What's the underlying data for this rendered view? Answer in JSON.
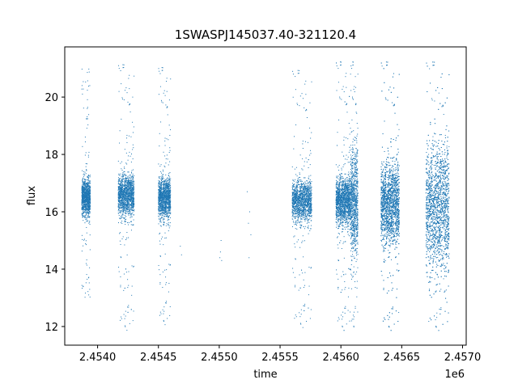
{
  "chart_data": {
    "type": "scatter",
    "title": "1SWASPJ145037.40-321120.4",
    "xlabel": "time",
    "ylabel": "flux",
    "x_offset_label": "1e6",
    "xlim": [
      2453730,
      2457030
    ],
    "ylim": [
      11.35,
      21.75
    ],
    "x_ticks": [
      2454000,
      2454500,
      2455000,
      2455500,
      2456000,
      2456500,
      2457000
    ],
    "x_tick_labels": [
      "2.4540",
      "2.4545",
      "2.4550",
      "2.4555",
      "2.4560",
      "2.4565",
      "2.4570"
    ],
    "y_ticks": [
      12,
      14,
      16,
      18,
      20
    ],
    "y_tick_labels": [
      "12",
      "14",
      "16",
      "18",
      "20"
    ],
    "grid": false,
    "marker_color": "#1f77b4",
    "seasons": [
      {
        "x0": 2453870,
        "x1": 2453940,
        "center": 16.5,
        "core": 0.55,
        "tail_lo": 13.0,
        "tail_hi": 21.0,
        "count": 1100
      },
      {
        "x0": 2454170,
        "x1": 2454300,
        "center": 16.6,
        "core": 0.6,
        "tail_lo": 11.8,
        "tail_hi": 21.2,
        "count": 1500
      },
      {
        "x0": 2454500,
        "x1": 2454600,
        "center": 16.5,
        "core": 0.6,
        "tail_lo": 12.0,
        "tail_hi": 21.1,
        "count": 1300
      },
      {
        "x0": 2455600,
        "x1": 2455760,
        "center": 16.4,
        "core": 0.6,
        "tail_lo": 11.9,
        "tail_hi": 21.0,
        "count": 1500
      },
      {
        "x0": 2455960,
        "x1": 2456080,
        "center": 16.4,
        "core": 0.7,
        "tail_lo": 11.8,
        "tail_hi": 21.3,
        "count": 1700
      },
      {
        "x0": 2456080,
        "x1": 2456140,
        "center": 16.4,
        "core": 1.6,
        "tail_lo": 11.8,
        "tail_hi": 21.3,
        "count": 900
      },
      {
        "x0": 2456330,
        "x1": 2456480,
        "center": 16.3,
        "core": 1.2,
        "tail_lo": 11.8,
        "tail_hi": 21.3,
        "count": 2600
      },
      {
        "x0": 2456700,
        "x1": 2456890,
        "center": 16.2,
        "core": 1.9,
        "tail_lo": 11.8,
        "tail_hi": 21.3,
        "count": 2600
      }
    ],
    "sparse_points": [
      [
        2454680,
        14.8
      ],
      [
        2454690,
        14.5
      ],
      [
        2455010,
        14.6
      ],
      [
        2455020,
        14.3
      ],
      [
        2455015,
        15.0
      ],
      [
        2455005,
        14.4
      ],
      [
        2455240,
        15.6
      ],
      [
        2455250,
        16.0
      ],
      [
        2455260,
        15.2
      ],
      [
        2455230,
        16.7
      ],
      [
        2455245,
        14.4
      ]
    ]
  }
}
